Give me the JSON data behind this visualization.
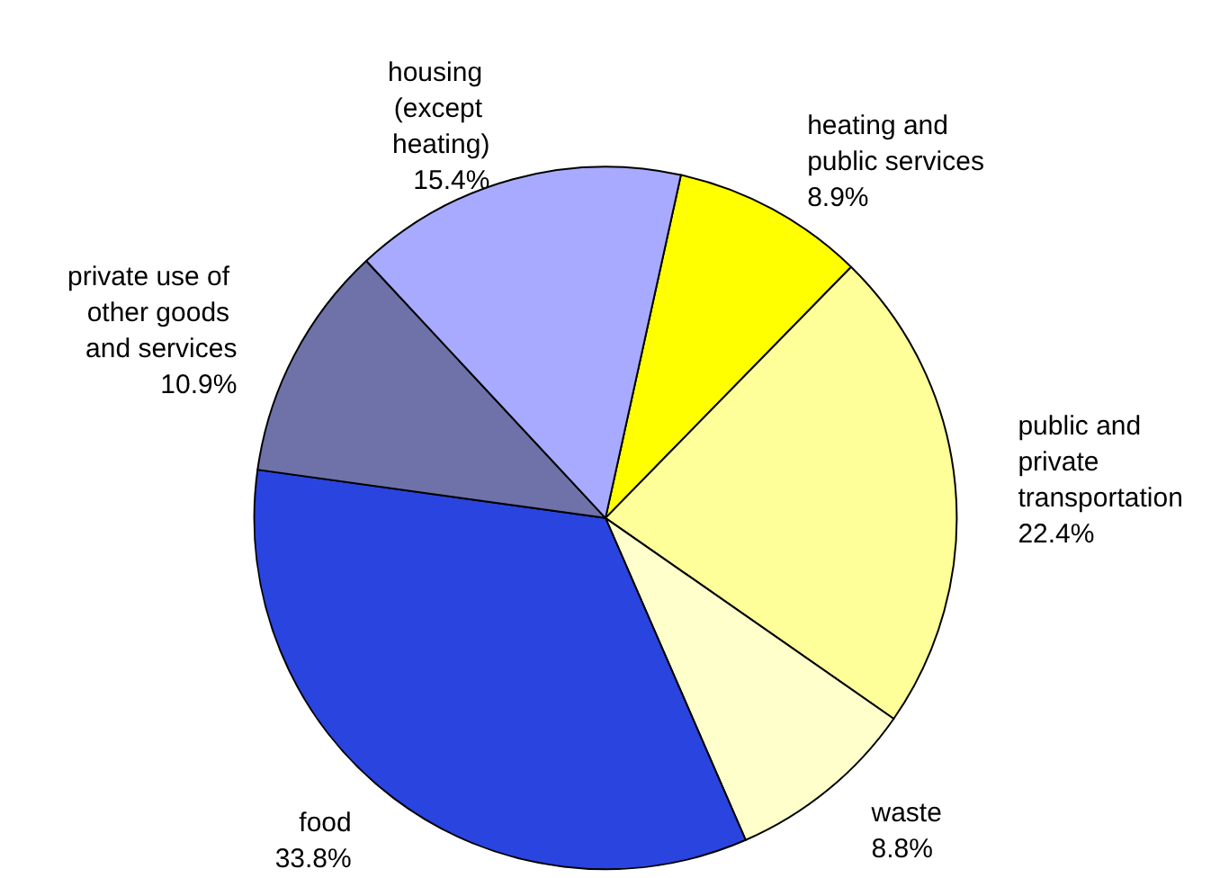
{
  "chart_data": {
    "type": "pie",
    "categories": [
      "heating and public services",
      "public and private transportation",
      "waste",
      "food",
      "private use of other goods and services",
      "housing (except heating)"
    ],
    "values": [
      8.9,
      22.4,
      8.8,
      33.8,
      10.9,
      15.4
    ],
    "colors": [
      "#ffff00",
      "#ffff99",
      "#ffffcc",
      "#2a44e0",
      "#6e72a8",
      "#a8aaff"
    ],
    "value_labels": [
      "8.9%",
      "22.4%",
      "8.8%",
      "33.8%",
      "10.9%",
      "15.4%"
    ],
    "legend": false
  }
}
